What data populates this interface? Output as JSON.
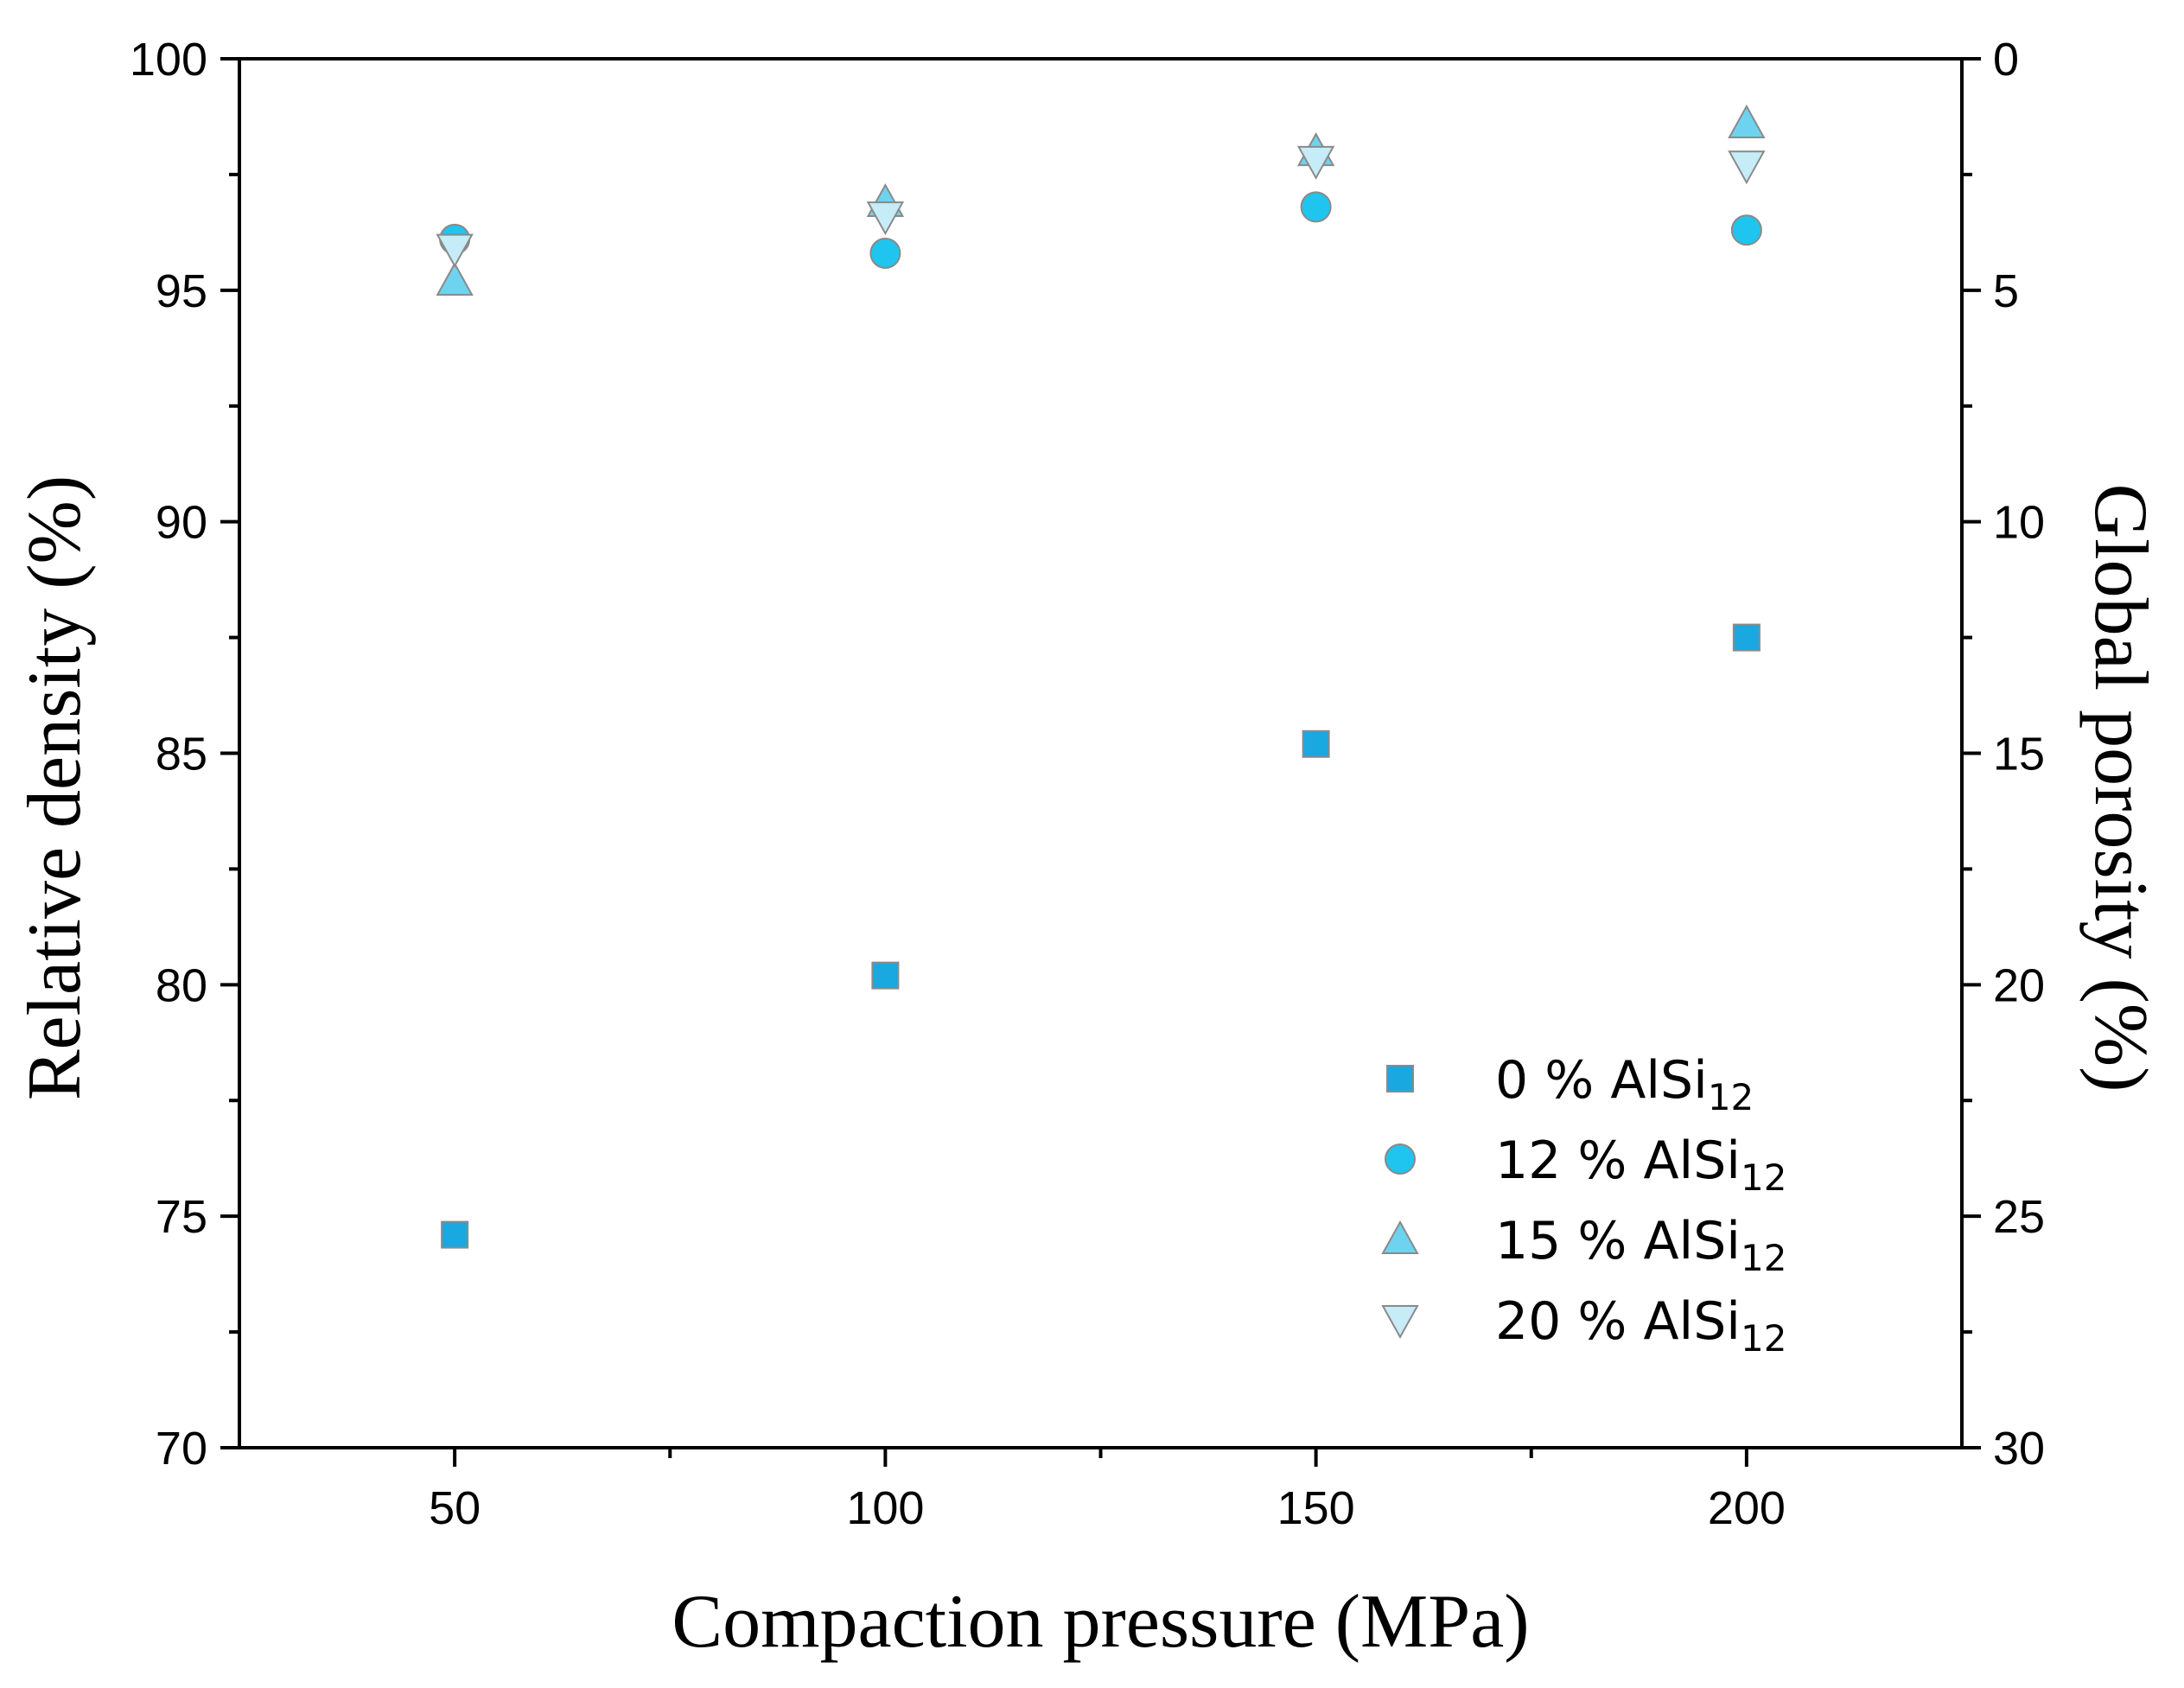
{
  "chart_data": {
    "type": "scatter",
    "x": [
      50,
      100,
      150,
      200
    ],
    "xlim": [
      25,
      225
    ],
    "xticks": [
      50,
      100,
      150,
      200
    ],
    "xlabel": "Compaction pressure (MPa)",
    "ylabel": "Relative density (%)",
    "ylim": [
      70,
      100
    ],
    "yticks": [
      70,
      75,
      80,
      85,
      90,
      95,
      100
    ],
    "y2label": "Global porosity (%)",
    "y2lim": [
      30,
      0
    ],
    "y2ticks": [
      0,
      5,
      10,
      15,
      20,
      25,
      30
    ],
    "grid": false,
    "legend_position": "bottom-right",
    "series": [
      {
        "name": "0 % AlSi",
        "subscript": "12",
        "marker": "square",
        "color": "#1aa8e0",
        "values": [
          74.6,
          80.2,
          85.2,
          87.5
        ]
      },
      {
        "name": "12 % AlSi",
        "subscript": "12",
        "marker": "circle",
        "color": "#1fc5ee",
        "values": [
          96.1,
          95.8,
          96.8,
          96.3
        ]
      },
      {
        "name": "15 % AlSi",
        "subscript": "12",
        "marker": "triangle-up",
        "color": "#6ed3ee",
        "values": [
          95.2,
          96.9,
          98.0,
          98.6
        ]
      },
      {
        "name": "20 % AlSi",
        "subscript": "12",
        "marker": "triangle-down",
        "color": "#c6ecf7",
        "values": [
          95.9,
          96.6,
          97.8,
          97.7
        ]
      }
    ]
  }
}
